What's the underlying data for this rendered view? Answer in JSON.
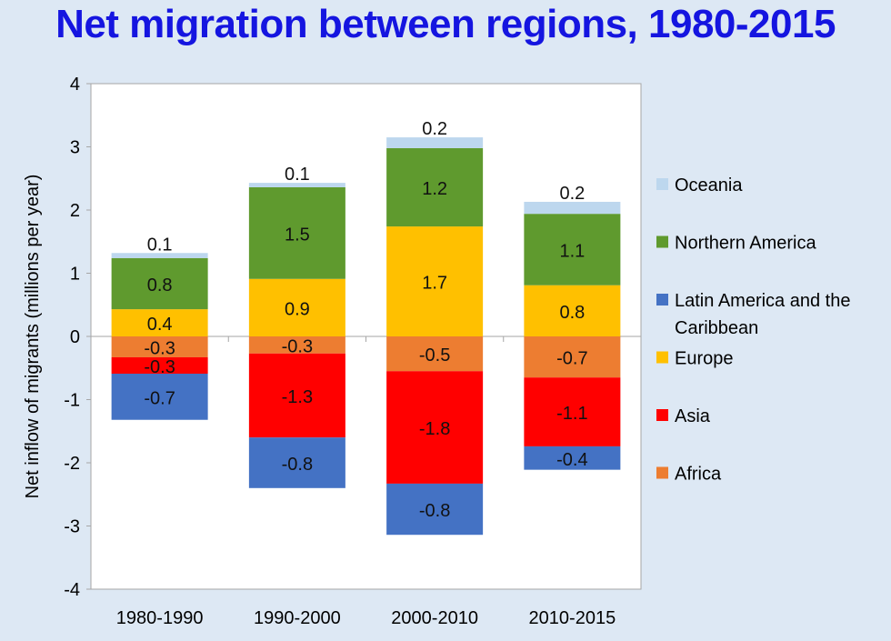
{
  "chart_data": {
    "type": "bar",
    "stacked": true,
    "title": "Net migration between regions, 1980-2015",
    "xlabel": "",
    "ylabel": "Net inflow of migrants (millions per year)",
    "ylim": [
      -4,
      4
    ],
    "yticks": [
      4,
      3,
      2,
      1,
      0,
      -1,
      -2,
      -3,
      -4
    ],
    "categories": [
      "1980-1990",
      "1990-2000",
      "2000-2010",
      "2010-2015"
    ],
    "legend_position": "right",
    "series": [
      {
        "name": "Africa",
        "color": "#ed7d31",
        "values": [
          -0.33,
          -0.27,
          -0.55,
          -0.65
        ],
        "labels": [
          "-0.3",
          "-0.3",
          "-0.5",
          "-0.7"
        ]
      },
      {
        "name": "Asia",
        "color": "#ff0000",
        "values": [
          -0.26,
          -1.33,
          -1.78,
          -1.09
        ],
        "labels": [
          "-0.3",
          "-1.3",
          "-1.8",
          "-1.1"
        ]
      },
      {
        "name": "Latin America and the Caribbean",
        "color": "#4472c4",
        "values": [
          -0.73,
          -0.8,
          -0.81,
          -0.37
        ],
        "labels": [
          "-0.7",
          "-0.8",
          "-0.8",
          "-0.4"
        ]
      },
      {
        "name": "Europe",
        "color": "#ffc000",
        "values": [
          0.43,
          0.91,
          1.74,
          0.81
        ],
        "labels": [
          "0.4",
          "0.9",
          "1.7",
          "0.8"
        ]
      },
      {
        "name": "Northern America",
        "color": "#5f9a2e",
        "values": [
          0.81,
          1.45,
          1.24,
          1.13
        ],
        "labels": [
          "0.8",
          "1.5",
          "1.2",
          "1.1"
        ]
      },
      {
        "name": "Oceania",
        "color": "#bdd7ee",
        "values": [
          0.08,
          0.07,
          0.17,
          0.19
        ],
        "labels": [
          "0.1",
          "0.1",
          "0.2",
          "0.2"
        ]
      }
    ],
    "legend_order": [
      "Oceania",
      "Northern America",
      "Latin America and the Caribbean",
      "Europe",
      "Asia",
      "Africa"
    ]
  }
}
